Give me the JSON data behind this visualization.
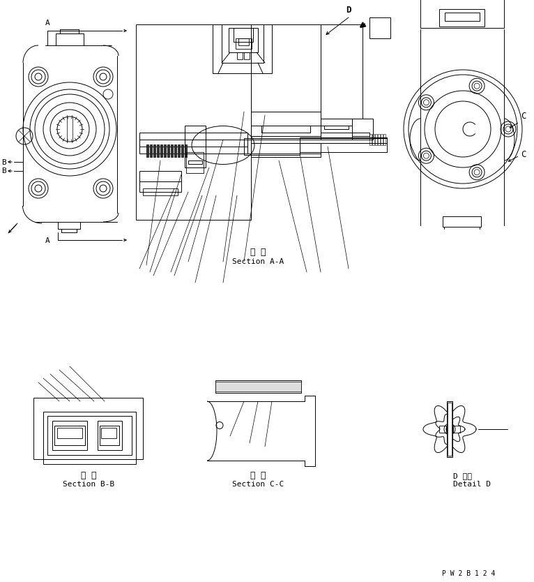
{
  "bg_color": "#ffffff",
  "line_color": "#000000",
  "part_number": "P W 2 B 1 2 4",
  "section_aa_label_jp": "断 面",
  "section_aa_label": "Section A-A",
  "section_bb_label_jp": "断 面",
  "section_bb_label": "Section B-B",
  "section_cc_label_jp": "断 面",
  "section_cc_label": "Section C-C",
  "section_d_label": "D 詳細",
  "detail_d_label": "Detail D",
  "label_A": "A",
  "label_B": "B",
  "label_C": "C",
  "label_D": "D"
}
